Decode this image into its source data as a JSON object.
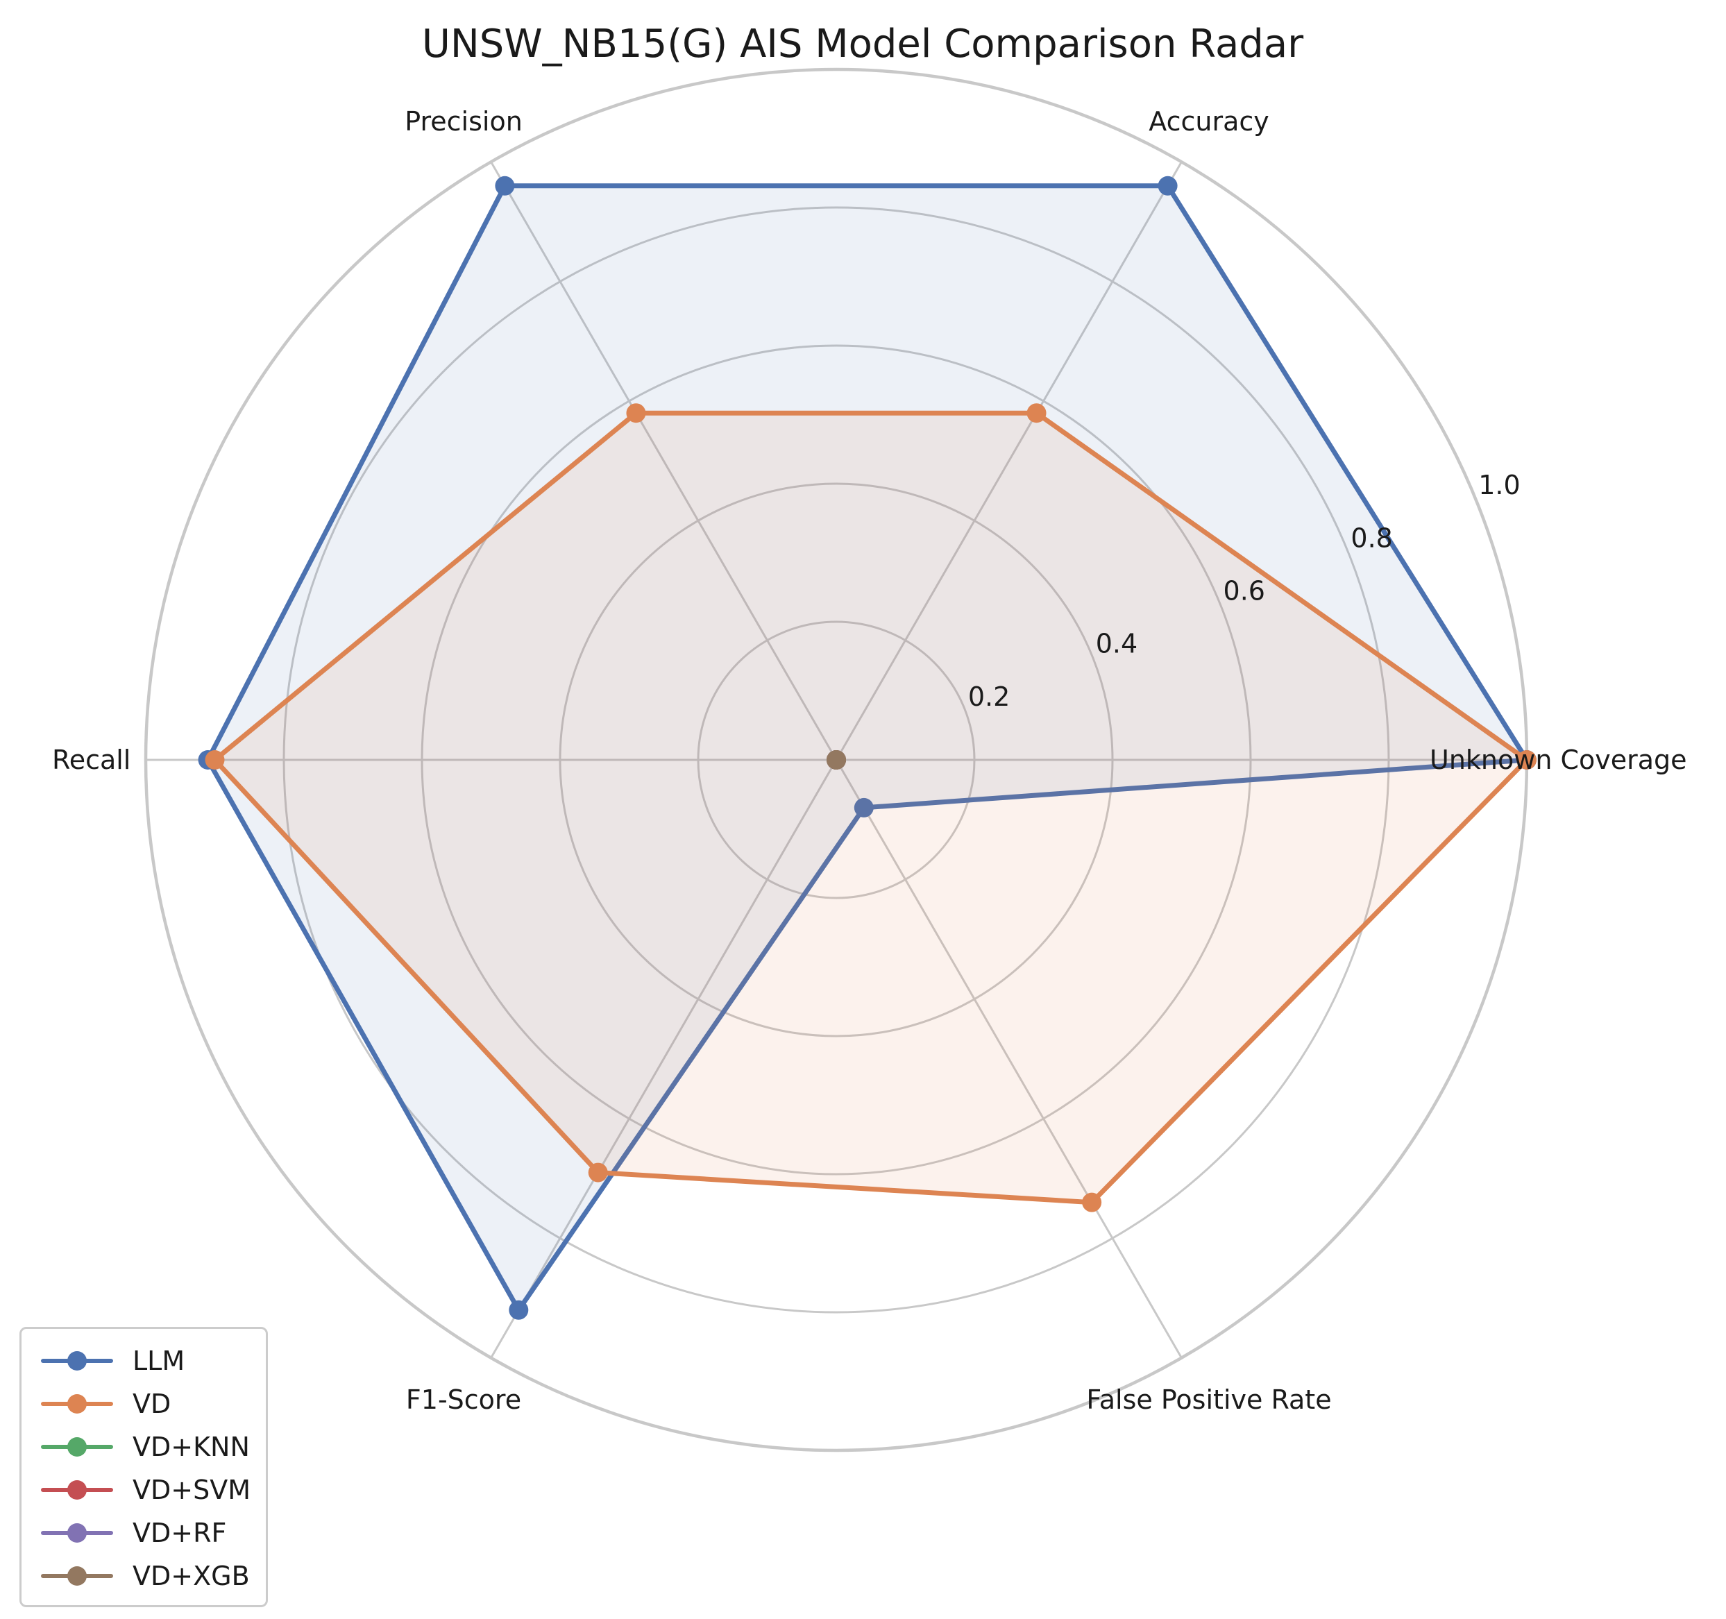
{
  "chart_data": {
    "type": "radar",
    "title": "UNSW_NB15(G) AIS Model Comparison Radar",
    "axes": [
      "Unknown Coverage",
      "Accuracy",
      "Precision",
      "Recall",
      "F1-Score",
      "False Positive Rate"
    ],
    "rticks": [
      0.2,
      0.4,
      0.6,
      0.8,
      1.0
    ],
    "rtick_labels": [
      "0.2",
      "0.4",
      "0.6",
      "0.8",
      "1.0"
    ],
    "rlim": [
      0,
      1.0
    ],
    "grid": true,
    "legend_position": "lower-left",
    "series": [
      {
        "name": "LLM",
        "color": "#4C72B0",
        "values": [
          1.0,
          0.96,
          0.96,
          0.91,
          0.92,
          0.08
        ]
      },
      {
        "name": "VD",
        "color": "#DD8452",
        "values": [
          1.0,
          0.58,
          0.58,
          0.9,
          0.69,
          0.74
        ]
      },
      {
        "name": "VD+KNN",
        "color": "#55A868",
        "values": [
          0,
          0,
          0,
          0,
          0,
          0
        ]
      },
      {
        "name": "VD+SVM",
        "color": "#C44E52",
        "values": [
          0,
          0,
          0,
          0,
          0,
          0
        ]
      },
      {
        "name": "VD+RF",
        "color": "#8172B3",
        "values": [
          0,
          0,
          0,
          0,
          0,
          0
        ]
      },
      {
        "name": "VD+XGB",
        "color": "#937860",
        "values": [
          0,
          0,
          0,
          0,
          0,
          0
        ]
      }
    ]
  }
}
